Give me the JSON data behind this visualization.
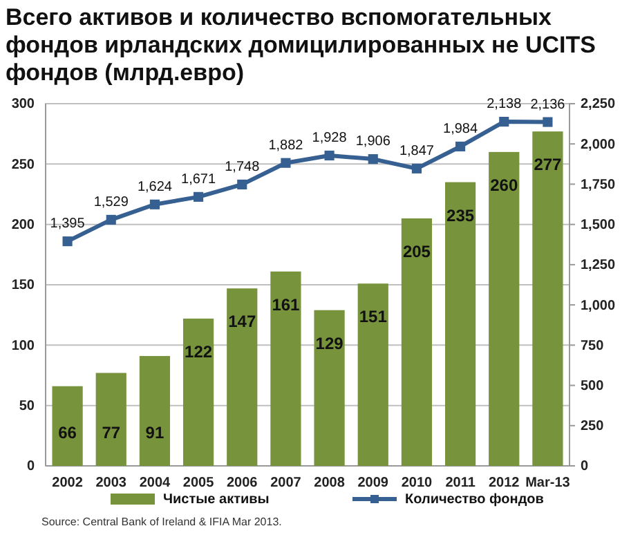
{
  "chart_data": {
    "type": "bar",
    "title": "Всего активов и количество вспомогательных фондов ирландских домицилированных не UCITS фондов (млрд.евро)",
    "categories": [
      "2002",
      "2003",
      "2004",
      "2005",
      "2006",
      "2007",
      "2008",
      "2009",
      "2010",
      "2011",
      "2012",
      "Mar-13"
    ],
    "series": [
      {
        "name": "Чистые активы",
        "color": "#77933c",
        "values": [
          66,
          77,
          91,
          122,
          147,
          161,
          129,
          151,
          205,
          235,
          260,
          277
        ]
      },
      {
        "name": "Количество фондов",
        "type": "line",
        "axis": "y2",
        "color": "#376092",
        "marker": "square",
        "values": [
          1395,
          1529,
          1624,
          1671,
          1748,
          1882,
          1928,
          1906,
          1847,
          1984,
          2138,
          2136
        ],
        "value_labels": [
          "1,395",
          "1,529",
          "1,624",
          "1,671",
          "1,748",
          "1,882",
          "1,928",
          "1,906",
          "1,847",
          "1,984",
          "2,138",
          "2,136"
        ]
      }
    ],
    "ylim": [
      0,
      300
    ],
    "yticks": [
      0,
      50,
      100,
      150,
      200,
      250,
      300
    ],
    "y2lim": [
      0,
      2250
    ],
    "y2ticks": [
      {
        "value": 0,
        "label": "0"
      },
      {
        "value": 250,
        "label": "250"
      },
      {
        "value": 500,
        "label": "500"
      },
      {
        "value": 750,
        "label": "750"
      },
      {
        "value": 1000,
        "label": "1,000"
      },
      {
        "value": 1250,
        "label": "1,250"
      },
      {
        "value": 1500,
        "label": "1,500"
      },
      {
        "value": 1750,
        "label": "1,750"
      },
      {
        "value": 2000,
        "label": "2,000"
      },
      {
        "value": 2250,
        "label": "2,250"
      }
    ],
    "data_labels": true,
    "grid": "y",
    "legend": "bottom",
    "annotations": [
      "Source: Central Bank of Ireland  & IFIA  Mar 2013."
    ]
  }
}
